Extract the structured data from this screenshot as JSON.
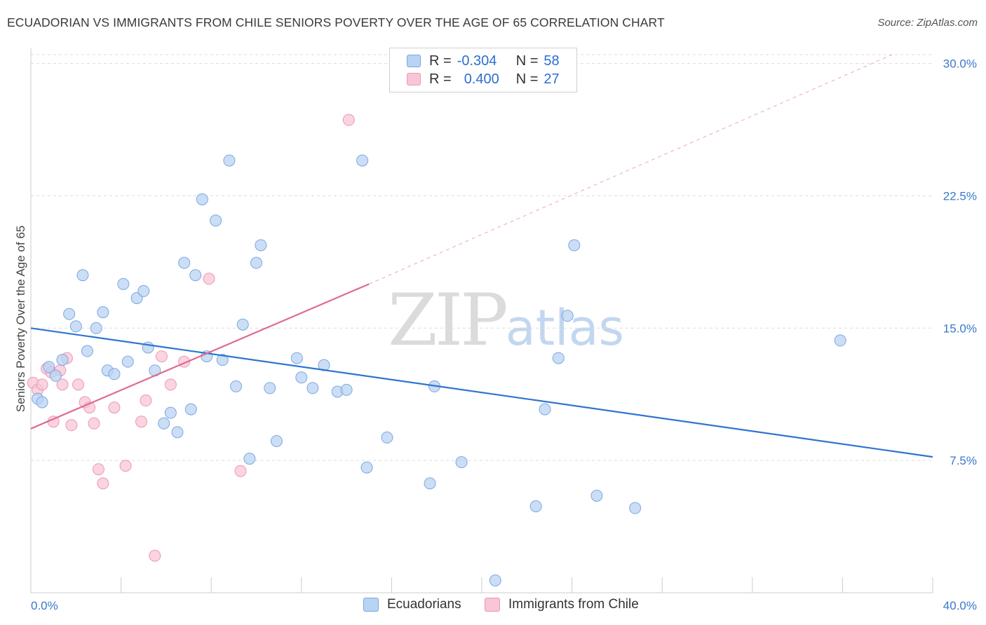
{
  "title": "ECUADORIAN VS IMMIGRANTS FROM CHILE SENIORS POVERTY OVER THE AGE OF 65 CORRELATION CHART",
  "source": "Source: ZipAtlas.com",
  "watermark": {
    "zip": "ZIP",
    "atlas": "atlas"
  },
  "colors": {
    "blue_fill": "#b9d3f3",
    "blue_stroke": "#7aa8e0",
    "blue_line": "#2f74d0",
    "pink_fill": "#f8c6d6",
    "pink_stroke": "#ec98b3",
    "pink_line": "#e2698f",
    "tick_label": "#3b78c8",
    "grid": "#dcdcdc"
  },
  "legend": {
    "series1": {
      "r_label": "R =",
      "r_value": "-0.304",
      "n_label": "N =",
      "n_value": "58"
    },
    "series2": {
      "r_label": "R =",
      "r_value": "0.400",
      "n_label": "N =",
      "n_value": "27"
    }
  },
  "bottom_legend": {
    "series1": "Ecuadorians",
    "series2": "Immigrants from Chile"
  },
  "chart_data": {
    "type": "scatter",
    "title": "ECUADORIAN VS IMMIGRANTS FROM CHILE SENIORS POVERTY OVER THE AGE OF 65 CORRELATION CHART",
    "xlabel": "",
    "ylabel": "Seniors Poverty Over the Age of 65",
    "xlim": [
      0,
      40
    ],
    "ylim": [
      0,
      30.5
    ],
    "x_tick_labels": [
      "0.0%",
      "40.0%"
    ],
    "y_ticks": [
      7.5,
      15.0,
      22.5,
      30.0
    ],
    "y_tick_labels": [
      "7.5%",
      "15.0%",
      "22.5%",
      "30.0%"
    ],
    "grid": true,
    "series": [
      {
        "name": "Ecuadorians",
        "r": -0.304,
        "n": 58,
        "trend": {
          "x": [
            0,
            40
          ],
          "y": [
            15.0,
            7.7
          ]
        },
        "points": [
          [
            0.3,
            11.0
          ],
          [
            0.5,
            10.8
          ],
          [
            0.8,
            12.8
          ],
          [
            1.1,
            12.3
          ],
          [
            1.4,
            13.2
          ],
          [
            1.7,
            15.8
          ],
          [
            2.0,
            15.1
          ],
          [
            2.3,
            18.0
          ],
          [
            2.5,
            13.7
          ],
          [
            2.9,
            15.0
          ],
          [
            3.2,
            15.9
          ],
          [
            3.4,
            12.6
          ],
          [
            3.7,
            12.4
          ],
          [
            4.1,
            17.5
          ],
          [
            4.3,
            13.1
          ],
          [
            4.7,
            16.7
          ],
          [
            5.0,
            17.1
          ],
          [
            5.2,
            13.9
          ],
          [
            5.5,
            12.6
          ],
          [
            5.9,
            9.6
          ],
          [
            6.2,
            10.2
          ],
          [
            6.5,
            9.1
          ],
          [
            6.8,
            18.7
          ],
          [
            7.1,
            10.4
          ],
          [
            7.3,
            18.0
          ],
          [
            7.6,
            22.3
          ],
          [
            7.8,
            13.4
          ],
          [
            8.2,
            21.1
          ],
          [
            8.5,
            13.2
          ],
          [
            8.8,
            24.5
          ],
          [
            9.1,
            11.7
          ],
          [
            9.4,
            15.2
          ],
          [
            9.7,
            7.6
          ],
          [
            10.0,
            18.7
          ],
          [
            10.2,
            19.7
          ],
          [
            10.6,
            11.6
          ],
          [
            10.9,
            8.6
          ],
          [
            11.8,
            13.3
          ],
          [
            12.0,
            12.2
          ],
          [
            12.5,
            11.6
          ],
          [
            13.0,
            12.9
          ],
          [
            13.6,
            11.4
          ],
          [
            14.0,
            11.5
          ],
          [
            14.7,
            24.5
          ],
          [
            14.9,
            7.1
          ],
          [
            15.8,
            8.8
          ],
          [
            17.7,
            6.2
          ],
          [
            17.9,
            11.7
          ],
          [
            19.1,
            7.4
          ],
          [
            20.6,
            0.7
          ],
          [
            22.4,
            4.9
          ],
          [
            22.8,
            10.4
          ],
          [
            23.4,
            13.3
          ],
          [
            23.8,
            15.7
          ],
          [
            24.1,
            19.7
          ],
          [
            25.1,
            5.5
          ],
          [
            26.8,
            4.8
          ],
          [
            35.9,
            14.3
          ]
        ]
      },
      {
        "name": "Immigrants from Chile",
        "r": 0.4,
        "n": 27,
        "trend": {
          "x": [
            0,
            15.0
          ],
          "y": [
            9.3,
            17.5
          ],
          "dashed_extension": {
            "x": [
              15.0,
              38.2
            ],
            "y": [
              17.5,
              30.5
            ]
          }
        },
        "points": [
          [
            0.1,
            11.9
          ],
          [
            0.3,
            11.5
          ],
          [
            0.5,
            11.8
          ],
          [
            0.7,
            12.7
          ],
          [
            0.9,
            12.5
          ],
          [
            1.0,
            9.7
          ],
          [
            1.3,
            12.6
          ],
          [
            1.4,
            11.8
          ],
          [
            1.6,
            13.3
          ],
          [
            1.8,
            9.5
          ],
          [
            2.1,
            11.8
          ],
          [
            2.4,
            10.8
          ],
          [
            2.6,
            10.5
          ],
          [
            2.8,
            9.6
          ],
          [
            3.0,
            7.0
          ],
          [
            3.2,
            6.2
          ],
          [
            3.7,
            10.5
          ],
          [
            4.2,
            7.2
          ],
          [
            4.9,
            9.7
          ],
          [
            5.1,
            10.9
          ],
          [
            5.5,
            2.1
          ],
          [
            5.8,
            13.4
          ],
          [
            6.2,
            11.8
          ],
          [
            6.8,
            13.1
          ],
          [
            7.9,
            17.8
          ],
          [
            9.3,
            6.9
          ],
          [
            14.1,
            26.8
          ]
        ]
      }
    ]
  }
}
